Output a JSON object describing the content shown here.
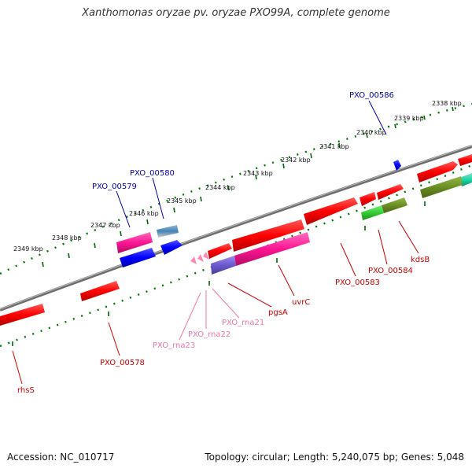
{
  "title": "Xanthomonas oryzae pv. oryzae PXO99A, complete genome",
  "footer": {
    "accession": "Accession: NC_010717",
    "summary": "Topology: circular; Length: 5,240,075 bp; Genes: 5,048"
  },
  "colors": {
    "gene_red": "#ff0000",
    "gene_magenta": "#ff1493",
    "gene_blue": "#0000ff",
    "gene_olive": "#6b8e23",
    "gene_green": "#32cd32",
    "gene_teal": "#2f8f8f",
    "rna_pink": "#ff88bb",
    "purple": "#6a5acd",
    "label_red": "#cc0000",
    "label_blue": "#0000aa",
    "label_pink": "#ee77aa",
    "backbone": "#808080",
    "tick": "#007700"
  },
  "scale": {
    "unit": "kbp",
    "ticks": [
      {
        "label": "2338 kbp"
      },
      {
        "label": "2339 kbp"
      },
      {
        "label": "2340 kbp"
      },
      {
        "label": "2341 kbp"
      },
      {
        "label": "2342 kbp"
      },
      {
        "label": "2343 kbp"
      },
      {
        "label": "2344 kbp"
      },
      {
        "label": "2345 kbp"
      },
      {
        "label": "2346 kbp"
      },
      {
        "label": "2347 kbp"
      },
      {
        "label": "2348 kbp"
      },
      {
        "label": "2349 kbp"
      }
    ]
  },
  "labels": {
    "blue": [
      {
        "text": "PXO_00586"
      },
      {
        "text": "PXO_00580"
      },
      {
        "text": "PXO_00579"
      }
    ],
    "red": [
      {
        "text": "kdsB"
      },
      {
        "text": "PXO_00584"
      },
      {
        "text": "PXO_00583"
      },
      {
        "text": "uvrC"
      },
      {
        "text": "pgsA"
      },
      {
        "text": "PXO_00578"
      },
      {
        "text": "rhsS"
      }
    ],
    "pink": [
      {
        "text": "PXO_rna21"
      },
      {
        "text": "PXO_rna22"
      },
      {
        "text": "PXO_rna23"
      }
    ]
  }
}
